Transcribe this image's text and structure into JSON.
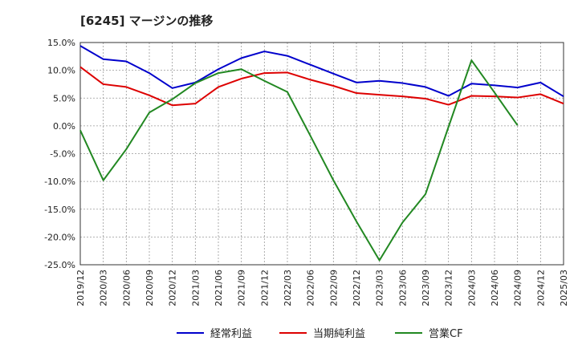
{
  "chart_data": {
    "type": "line",
    "title": "[6245]  マージンの推移",
    "ylim": [
      -25,
      15
    ],
    "yticks": [
      15,
      10,
      5,
      0,
      -5,
      -10,
      -15,
      -20,
      -25
    ],
    "y_tick_labels": [
      "15.0%",
      "10.0%",
      "5.0%",
      "0.0%",
      "-5.0%",
      "-10.0%",
      "-15.0%",
      "-20.0%",
      "-25.0%"
    ],
    "x_tick_labels": [
      "2019/12",
      "2020/03",
      "2020/06",
      "2020/09",
      "2020/12",
      "2021/03",
      "2021/06",
      "2021/09",
      "2021/12",
      "2022/03",
      "2022/06",
      "2022/09",
      "2022/12",
      "2023/03",
      "2023/06",
      "2023/09",
      "2023/12",
      "2024/03",
      "2024/06",
      "2024/09",
      "2024/12",
      "2025/03"
    ],
    "grid": true,
    "legend_position": "bottom",
    "series": [
      {
        "name": "経常利益",
        "color": "#0000cc",
        "values": [
          14.4,
          12.0,
          11.6,
          9.5,
          6.8,
          7.8,
          10.2,
          12.2,
          13.4,
          12.6,
          11.0,
          9.4,
          7.8,
          8.1,
          7.7,
          7.0,
          5.4,
          7.6,
          7.3,
          6.9,
          7.8,
          5.3
        ]
      },
      {
        "name": "当期純利益",
        "color": "#dd0000",
        "values": [
          10.6,
          7.5,
          7.0,
          5.5,
          3.7,
          4.0,
          7.0,
          8.5,
          9.5,
          9.6,
          8.3,
          7.2,
          5.9,
          5.6,
          5.3,
          4.9,
          3.8,
          5.4,
          5.3,
          5.1,
          5.7,
          4.0
        ]
      },
      {
        "name": "営業CF",
        "color": "#228822",
        "values": [
          -0.8,
          -9.8,
          -4.2,
          2.4,
          4.8,
          7.7,
          9.5,
          10.2,
          8.1,
          6.1,
          -1.8,
          -9.8,
          -17.2,
          -24.2,
          -17.4,
          -12.3,
          -0.2,
          11.8,
          6.0,
          0.1
        ]
      }
    ]
  }
}
